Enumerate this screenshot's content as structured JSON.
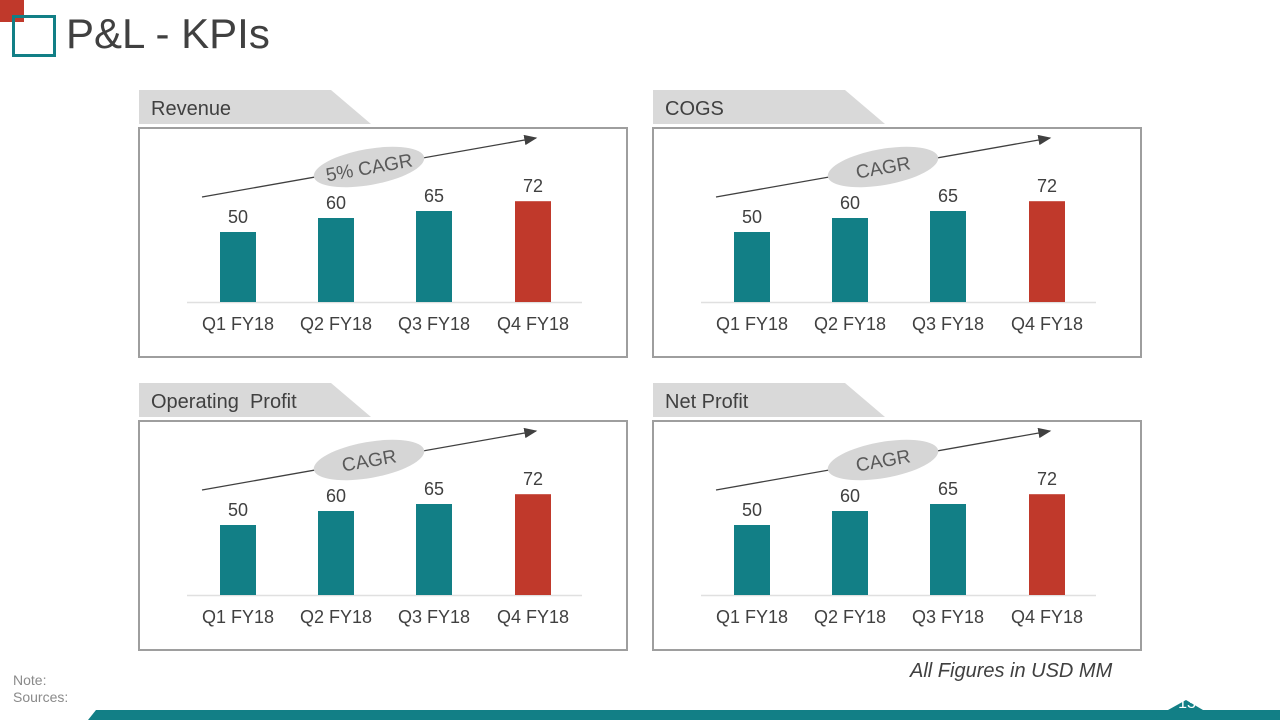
{
  "slide": {
    "title": "P&L - KPIs",
    "note_label": "Note:",
    "sources_label": "Sources:",
    "units_text": "All Figures in USD MM",
    "page_number": "13"
  },
  "colors": {
    "teal": "#127f86",
    "red": "#c0392b",
    "grey_tab": "#d9d9d9",
    "cagr_bubble": "#d6d6d6"
  },
  "chart_data": [
    {
      "type": "bar",
      "title": "Revenue",
      "cagr_label": "5% CAGR",
      "categories": [
        "Q1 FY18",
        "Q2 FY18",
        "Q3 FY18",
        "Q4 FY18"
      ],
      "values": [
        50,
        60,
        65,
        72
      ],
      "highlight_index": 3,
      "ylim": [
        0,
        100
      ]
    },
    {
      "type": "bar",
      "title": "COGS",
      "cagr_label": "CAGR",
      "categories": [
        "Q1 FY18",
        "Q2 FY18",
        "Q3 FY18",
        "Q4 FY18"
      ],
      "values": [
        50,
        60,
        65,
        72
      ],
      "highlight_index": 3,
      "ylim": [
        0,
        100
      ]
    },
    {
      "type": "bar",
      "title": "Operating  Profit",
      "cagr_label": "CAGR",
      "categories": [
        "Q1 FY18",
        "Q2 FY18",
        "Q3 FY18",
        "Q4 FY18"
      ],
      "values": [
        50,
        60,
        65,
        72
      ],
      "highlight_index": 3,
      "ylim": [
        0,
        100
      ]
    },
    {
      "type": "bar",
      "title": "Net Profit",
      "cagr_label": "CAGR",
      "categories": [
        "Q1 FY18",
        "Q2 FY18",
        "Q3 FY18",
        "Q4 FY18"
      ],
      "values": [
        50,
        60,
        65,
        72
      ],
      "highlight_index": 3,
      "ylim": [
        0,
        100
      ]
    }
  ]
}
